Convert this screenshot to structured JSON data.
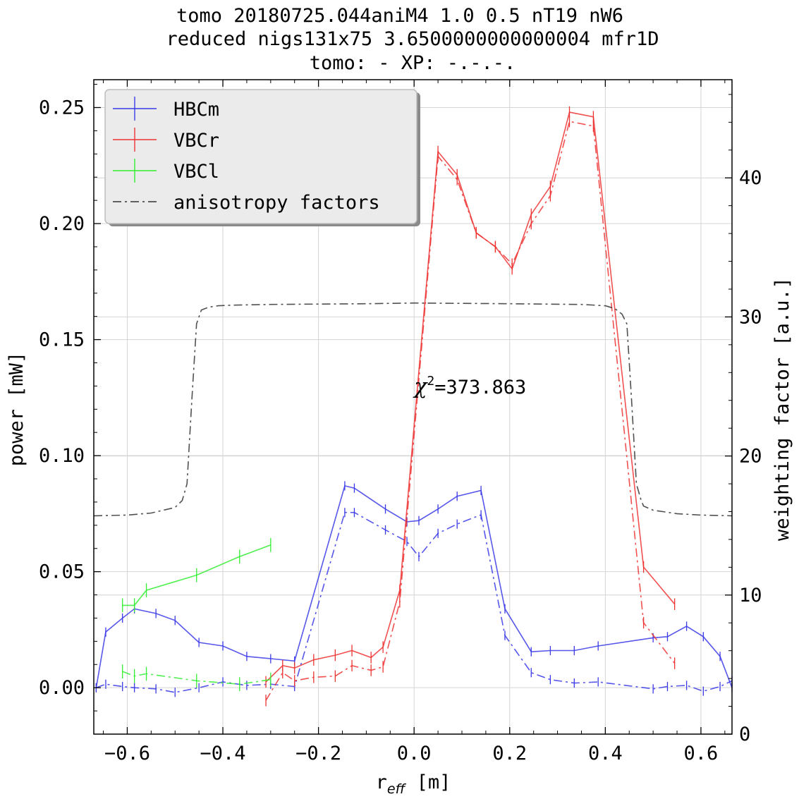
{
  "chart_data": {
    "type": "line",
    "title_lines": [
      "tomo 20180725.044aniM4  1.0 0.5  nT19 nW6",
      "reduced nigs131x75 3.6500000000000004 mfr1D",
      "tomo: -   XP: -.-.-."
    ],
    "xlabel_main": "r",
    "xlabel_sub": "eff",
    "xlabel_unit": " [m]",
    "ylabel": "power [mW]",
    "y2label": "weighting factor [a.u.]",
    "xlim": [
      -0.67,
      0.665
    ],
    "ylim": [
      -0.02,
      0.262
    ],
    "y2lim": [
      0,
      47.06
    ],
    "xticks": [
      -0.6,
      -0.4,
      -0.2,
      0.0,
      0.2,
      0.4,
      0.6
    ],
    "xtick_labels": [
      "−0.6",
      "−0.4",
      "−0.2",
      "0.0",
      "0.2",
      "0.4",
      "0.6"
    ],
    "yticks": [
      0.0,
      0.05,
      0.1,
      0.15,
      0.2,
      0.25
    ],
    "ytick_labels": [
      "0.00",
      "0.05",
      "0.10",
      "0.15",
      "0.20",
      "0.25"
    ],
    "y2ticks": [
      0,
      10,
      20,
      30,
      40
    ],
    "y2tick_labels": [
      "0",
      "10",
      "20",
      "30",
      "40"
    ],
    "annotation": {
      "symbol": "χ",
      "sup": "2",
      "text": "=373.863",
      "x": 0.0,
      "y": 0.131
    },
    "legend": {
      "placement": "top-left",
      "entries": [
        {
          "label": "HBCm",
          "color": "#3a3ae8",
          "style": "solid-errorbar"
        },
        {
          "label": "VBCr",
          "color": "#ee3333",
          "style": "solid-errorbar"
        },
        {
          "label": "VBCl",
          "color": "#33ee33",
          "style": "solid-errorbar"
        },
        {
          "label": "anisotropy factors",
          "color": "#333333",
          "style": "dashdot"
        }
      ]
    },
    "series": [
      {
        "name": "HBCm",
        "color": "#3a3ae8",
        "axis": "left",
        "dash": "solid",
        "x": [
          -0.665,
          -0.645,
          -0.61,
          -0.585,
          -0.54,
          -0.5,
          -0.45,
          -0.4,
          -0.35,
          -0.3,
          -0.25,
          -0.145,
          -0.125,
          -0.06,
          -0.015,
          0.01,
          0.05,
          0.09,
          0.14,
          0.19,
          0.245,
          0.285,
          0.335,
          0.385,
          0.5,
          0.53,
          0.57,
          0.605,
          0.64,
          0.665
        ],
        "y": [
          0.0,
          0.024,
          0.03,
          0.034,
          0.032,
          0.029,
          0.0195,
          0.018,
          0.0135,
          0.0125,
          0.0115,
          0.087,
          0.086,
          0.077,
          0.0715,
          0.072,
          0.077,
          0.0825,
          0.085,
          0.034,
          0.0155,
          0.016,
          0.016,
          0.018,
          0.0215,
          0.022,
          0.0265,
          0.022,
          0.0135,
          0.0
        ],
        "err": 0.002
      },
      {
        "name": "HBCm synthetic",
        "color": "#3a3ae8",
        "axis": "left",
        "dash": "dashdot",
        "x": [
          -0.665,
          -0.645,
          -0.61,
          -0.585,
          -0.54,
          -0.5,
          -0.45,
          -0.4,
          -0.35,
          -0.3,
          -0.25,
          -0.145,
          -0.125,
          -0.06,
          -0.015,
          0.01,
          0.05,
          0.09,
          0.14,
          0.19,
          0.245,
          0.285,
          0.335,
          0.385,
          0.5,
          0.53,
          0.57,
          0.605,
          0.64,
          0.665
        ],
        "y": [
          0.0,
          0.0015,
          0.0005,
          0.0,
          -0.0005,
          -0.002,
          0.0,
          0.0025,
          0.001,
          0.0015,
          0.0005,
          0.0755,
          0.0755,
          0.068,
          0.063,
          0.0565,
          0.0665,
          0.0705,
          0.0745,
          0.0225,
          0.0065,
          0.0035,
          0.002,
          0.0025,
          -0.0005,
          0.0005,
          0.001,
          -0.0015,
          0.0005,
          0.003
        ],
        "err": 0.002
      },
      {
        "name": "VBCr",
        "color": "#ee3333",
        "axis": "left",
        "dash": "solid",
        "x": [
          -0.31,
          -0.275,
          -0.25,
          -0.21,
          -0.165,
          -0.13,
          -0.09,
          -0.065,
          -0.03,
          0.05,
          0.09,
          0.13,
          0.17,
          0.205,
          0.245,
          0.285,
          0.325,
          0.375,
          0.48,
          0.545
        ],
        "y": [
          0.0025,
          0.0095,
          0.0085,
          0.012,
          0.014,
          0.016,
          0.013,
          0.0175,
          0.042,
          0.231,
          0.221,
          0.196,
          0.19,
          0.1805,
          0.204,
          0.216,
          0.248,
          0.246,
          0.052,
          0.036
        ],
        "err": 0.0025
      },
      {
        "name": "VBCr synthetic",
        "color": "#ee3333",
        "axis": "left",
        "dash": "dashdot",
        "x": [
          -0.31,
          -0.275,
          -0.25,
          -0.21,
          -0.165,
          -0.13,
          -0.09,
          -0.065,
          -0.03,
          0.05,
          0.09,
          0.13,
          0.17,
          0.205,
          0.245,
          0.285,
          0.325,
          0.375,
          0.48,
          0.545
        ],
        "y": [
          -0.0055,
          0.0065,
          0.003,
          0.0045,
          0.005,
          0.0095,
          0.0075,
          0.009,
          0.037,
          0.229,
          0.219,
          0.196,
          0.19,
          0.1825,
          0.2,
          0.212,
          0.244,
          0.242,
          0.028,
          0.0105
        ],
        "err": 0.0025
      },
      {
        "name": "VBCl",
        "color": "#33ee33",
        "axis": "left",
        "dash": "solid",
        "x": [
          -0.61,
          -0.585,
          -0.56,
          -0.455,
          -0.365,
          -0.3
        ],
        "y": [
          0.0355,
          0.0355,
          0.042,
          0.0485,
          0.0565,
          0.0615
        ],
        "err": 0.003
      },
      {
        "name": "VBCl synthetic",
        "color": "#33ee33",
        "axis": "left",
        "dash": "dashdot",
        "x": [
          -0.61,
          -0.585,
          -0.56,
          -0.455,
          -0.365,
          -0.3
        ],
        "y": [
          0.007,
          0.005,
          0.006,
          0.003,
          0.0015,
          0.0035
        ],
        "err": 0.003
      },
      {
        "name": "anisotropy factors",
        "color": "#333333",
        "axis": "right",
        "dash": "dashdot",
        "x": [
          -0.67,
          -0.6,
          -0.55,
          -0.5,
          -0.485,
          -0.475,
          -0.465,
          -0.455,
          -0.445,
          -0.43,
          -0.41,
          -0.38,
          -0.3,
          -0.1,
          0.0,
          0.2,
          0.35,
          0.4,
          0.42,
          0.435,
          0.445,
          0.455,
          0.465,
          0.475,
          0.48,
          0.5,
          0.55,
          0.6,
          0.665
        ],
        "y": [
          15.7,
          15.75,
          15.9,
          16.3,
          16.8,
          18.0,
          24.0,
          29.5,
          30.5,
          30.7,
          30.8,
          30.85,
          30.9,
          30.95,
          31.0,
          30.95,
          30.9,
          30.8,
          30.6,
          30.2,
          29.5,
          24.0,
          18.0,
          16.8,
          16.4,
          16.1,
          15.85,
          15.75,
          15.7
        ]
      }
    ]
  }
}
